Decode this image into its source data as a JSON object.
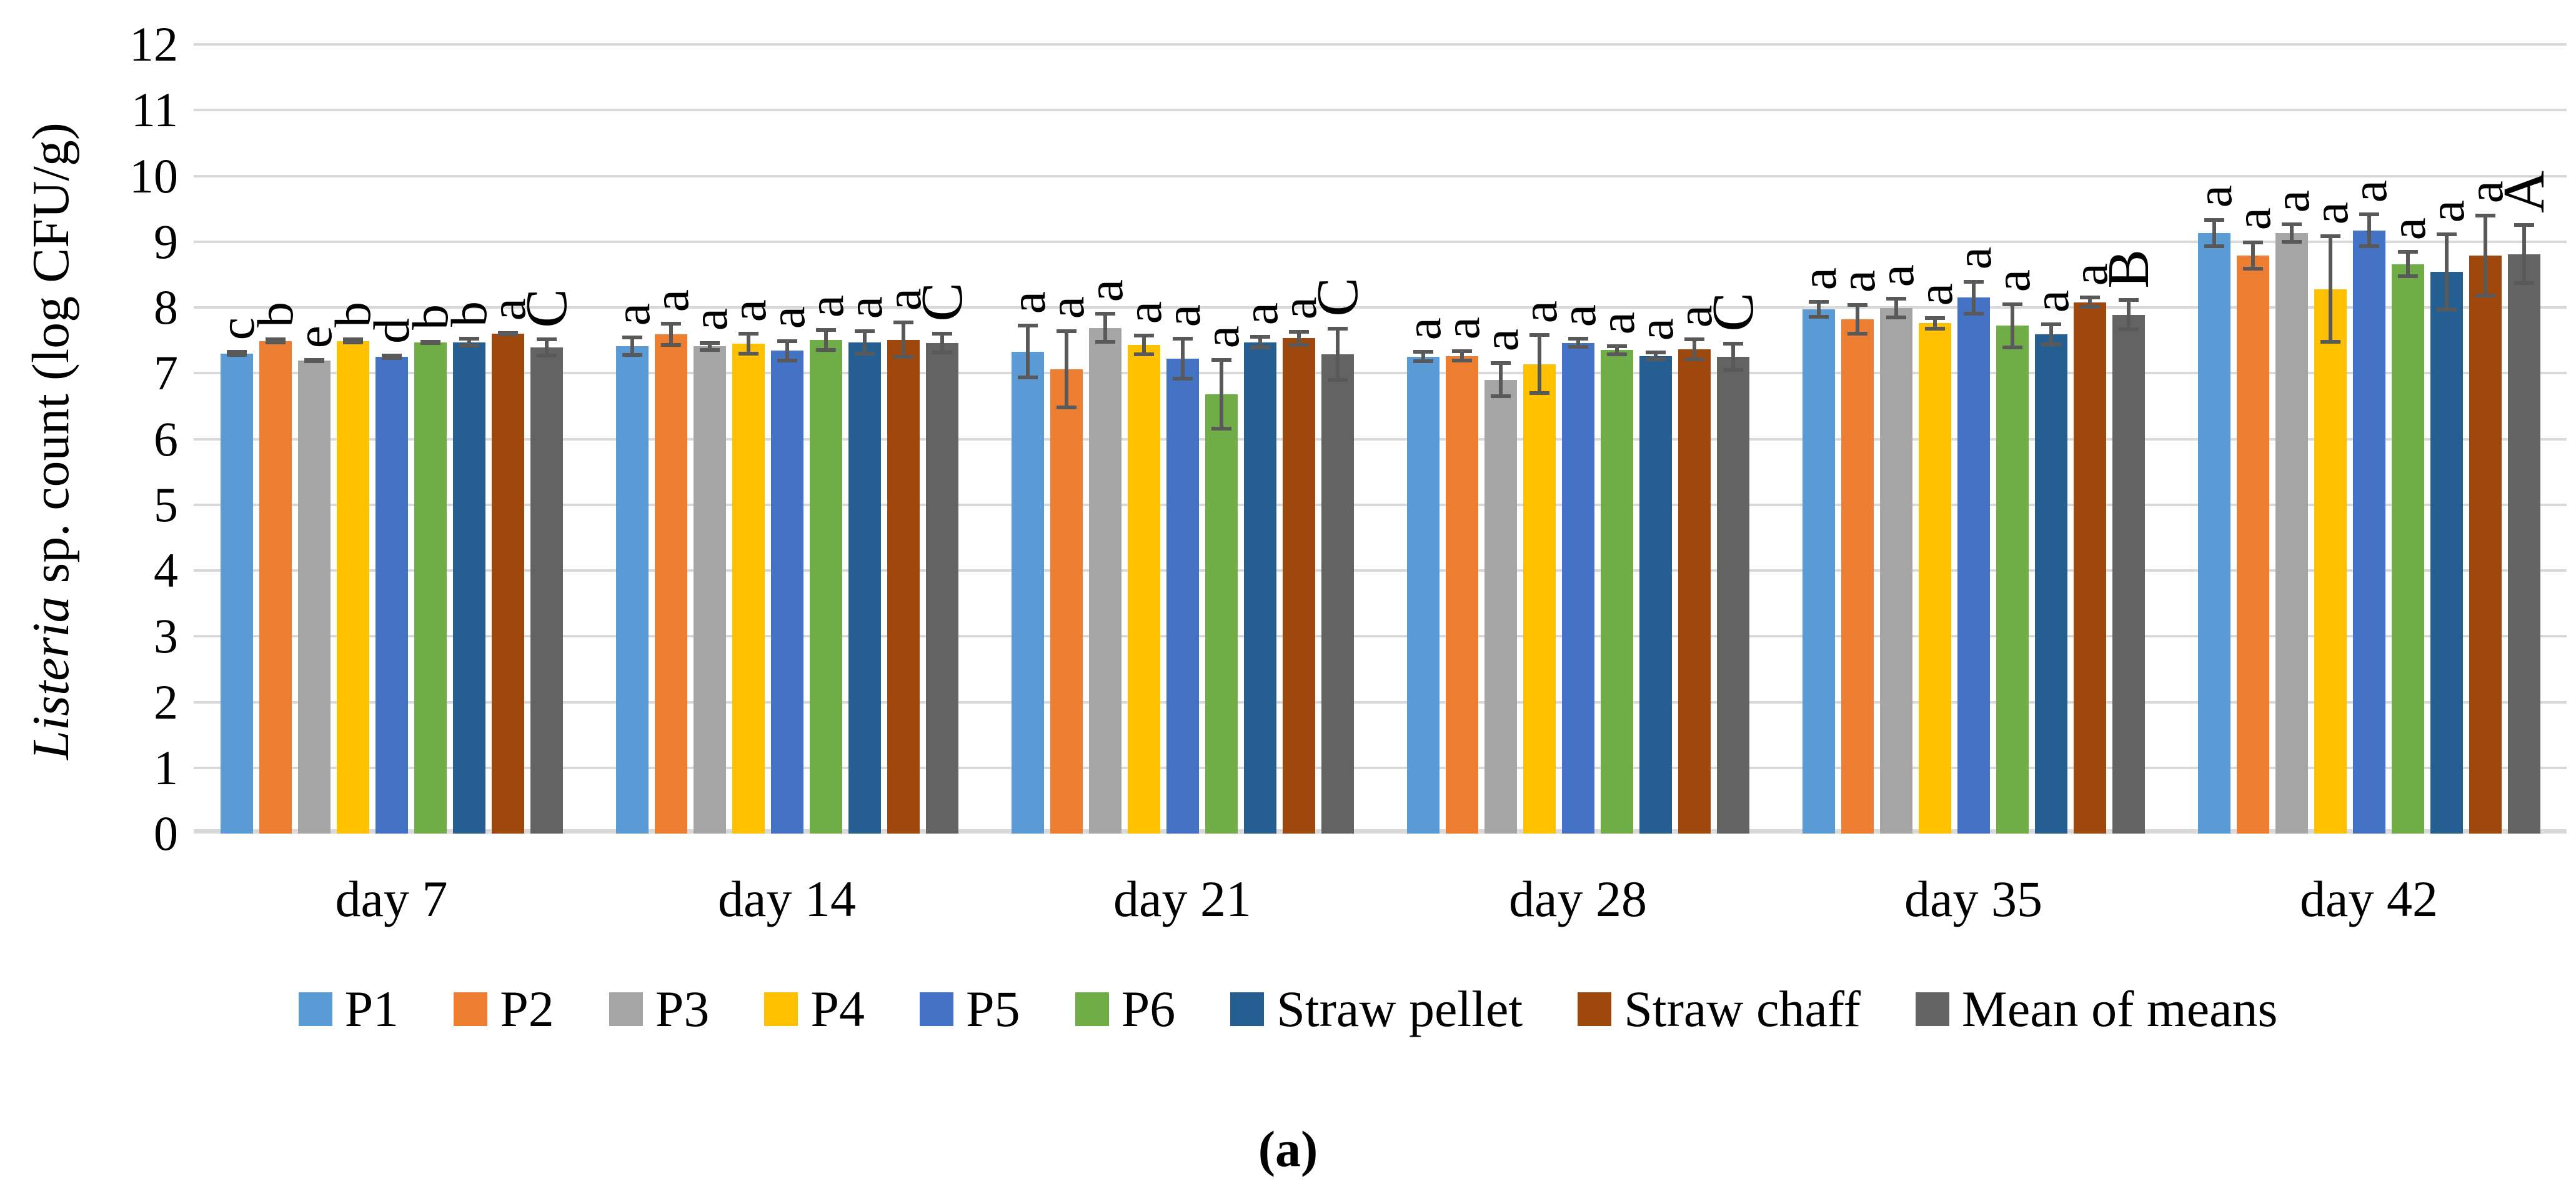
{
  "chart_data": {
    "type": "bar",
    "title": "",
    "ylabel_italic": "Listeria",
    "ylabel_rest": " sp. count (log CFU/g)",
    "xlabel": "",
    "ylim": [
      0,
      12
    ],
    "yticks": [
      0,
      1,
      2,
      3,
      4,
      5,
      6,
      7,
      8,
      9,
      10,
      11,
      12
    ],
    "grid": "horizontal",
    "legend_position": "bottom",
    "categories": [
      "day 7",
      "day 14",
      "day 21",
      "day 28",
      "day 35",
      "day 42"
    ],
    "series": [
      {
        "name": "P1",
        "color": "#5B9BD5",
        "values": [
          7.3,
          7.41,
          7.33,
          7.25,
          7.97,
          9.13
        ],
        "errors": [
          0.05,
          0.16,
          0.42,
          0.1,
          0.14,
          0.23
        ],
        "letters": [
          "c",
          "a",
          "a",
          "a",
          "a",
          "a"
        ]
      },
      {
        "name": "P2",
        "color": "#ED7D31",
        "values": [
          7.49,
          7.59,
          7.06,
          7.26,
          7.82,
          8.79
        ],
        "errors": [
          0.05,
          0.19,
          0.61,
          0.1,
          0.25,
          0.23
        ],
        "letters": [
          "b",
          "a",
          "a",
          "a",
          "a",
          "a"
        ]
      },
      {
        "name": "P3",
        "color": "#A5A5A5",
        "values": [
          7.19,
          7.41,
          7.69,
          6.9,
          7.99,
          9.13
        ],
        "errors": [
          0.04,
          0.08,
          0.24,
          0.28,
          0.17,
          0.16
        ],
        "letters": [
          "e",
          "a",
          "a",
          "a",
          "a",
          "a"
        ]
      },
      {
        "name": "P4",
        "color": "#FFC000",
        "values": [
          7.49,
          7.45,
          7.43,
          7.14,
          7.76,
          8.28
        ],
        "errors": [
          0.05,
          0.18,
          0.17,
          0.47,
          0.11,
          0.83
        ],
        "letters": [
          "b",
          "a",
          "a",
          "a",
          "a",
          "a"
        ]
      },
      {
        "name": "P5",
        "color": "#4472C4",
        "values": [
          7.25,
          7.34,
          7.22,
          7.46,
          8.15,
          9.17
        ],
        "errors": [
          0.05,
          0.18,
          0.33,
          0.09,
          0.27,
          0.27
        ],
        "letters": [
          "d",
          "a",
          "a",
          "a",
          "a",
          "a"
        ]
      },
      {
        "name": "P6",
        "color": "#70AD47",
        "values": [
          7.47,
          7.51,
          6.68,
          7.35,
          7.72,
          8.66
        ],
        "errors": [
          0.04,
          0.18,
          0.55,
          0.09,
          0.36,
          0.21
        ],
        "letters": [
          "b",
          "a",
          "a",
          "a",
          "a",
          "a"
        ]
      },
      {
        "name": "Straw pellet",
        "color": "#255E91",
        "values": [
          7.47,
          7.47,
          7.47,
          7.26,
          7.59,
          8.54
        ],
        "errors": [
          0.08,
          0.2,
          0.11,
          0.08,
          0.18,
          0.6
        ],
        "letters": [
          "b",
          "a",
          "a",
          "a",
          "a",
          "a"
        ]
      },
      {
        "name": "Straw chaff",
        "color": "#9E480E",
        "values": [
          7.6,
          7.51,
          7.53,
          7.36,
          8.08,
          8.79
        ],
        "errors": [
          0.04,
          0.29,
          0.13,
          0.18,
          0.1,
          0.64
        ],
        "letters": [
          "a",
          "a",
          "a",
          "a",
          "a",
          "a"
        ]
      },
      {
        "name": "Mean of means",
        "color": "#636363",
        "values": [
          7.39,
          7.46,
          7.29,
          7.25,
          7.89,
          8.81
        ],
        "errors": [
          0.15,
          0.17,
          0.42,
          0.23,
          0.25,
          0.47
        ],
        "letters": [
          "C",
          "C",
          "C",
          "C",
          "B",
          "A"
        ]
      }
    ],
    "colors": {
      "gridline": "#D9D9D9",
      "error_bar": "#595959",
      "text": "#000000"
    },
    "caption": "(a)"
  }
}
